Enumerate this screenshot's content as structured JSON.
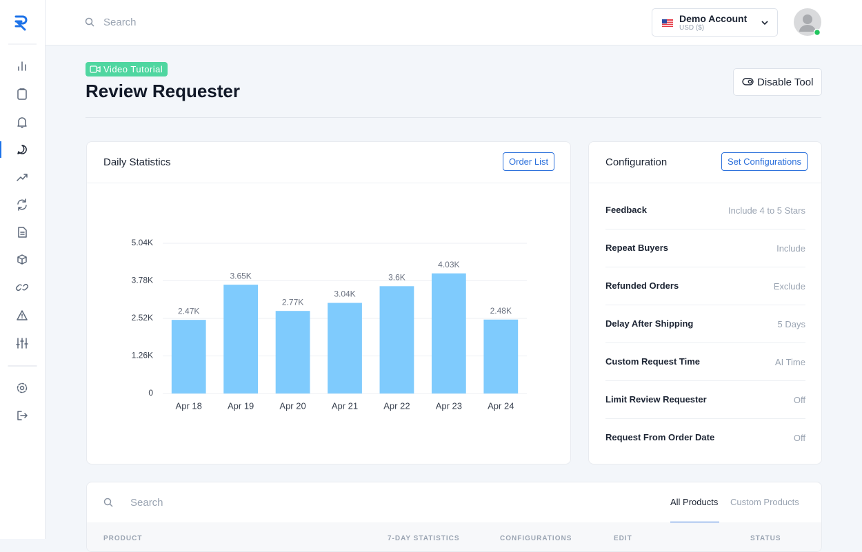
{
  "header": {
    "search_placeholder": "Search",
    "account_name": "Demo Account",
    "currency": "USD ($)"
  },
  "page": {
    "badge": "Video Tutorial",
    "title": "Review Requester",
    "disable_button": "Disable Tool"
  },
  "stats_card": {
    "title": "Daily Statistics",
    "button": "Order List"
  },
  "chart_data": {
    "type": "bar",
    "categories": [
      "Apr 18",
      "Apr 19",
      "Apr 20",
      "Apr 21",
      "Apr 22",
      "Apr 23",
      "Apr 24"
    ],
    "values": [
      2470,
      3650,
      2770,
      3040,
      3600,
      4030,
      2480
    ],
    "value_labels": [
      "2.47K",
      "3.65K",
      "2.77K",
      "3.04K",
      "3.6K",
      "4.03K",
      "2.48K"
    ],
    "color": "#7fcbfd",
    "ylim": [
      0,
      5040
    ],
    "yticks": [
      0,
      {
        "value": 1260,
        "label": "1.26K"
      },
      {
        "value": 2520,
        "label": "2.52K"
      },
      {
        "value": 3780,
        "label": "3.78K"
      },
      {
        "value": 5040,
        "label": "5.04K"
      }
    ],
    "grid": true
  },
  "config_card": {
    "title": "Configuration",
    "button": "Set Configurations",
    "rows": [
      [
        "Feedback",
        "Include 4 to 5 Stars"
      ],
      [
        "Repeat Buyers",
        "Include"
      ],
      [
        "Refunded Orders",
        "Exclude"
      ],
      [
        "Delay After Shipping",
        "5 Days"
      ],
      [
        "Custom Request Time",
        "AI Time"
      ],
      [
        "Limit Review Requester",
        "Off"
      ],
      [
        "Request From Order Date",
        "Off"
      ]
    ]
  },
  "products_card": {
    "search_placeholder": "Search",
    "tabs": [
      "All Products",
      "Custom Products"
    ],
    "columns": [
      "PRODUCT",
      "7-DAY STATISTICS",
      "CONFIGURATIONS",
      "EDIT",
      "STATUS"
    ]
  }
}
